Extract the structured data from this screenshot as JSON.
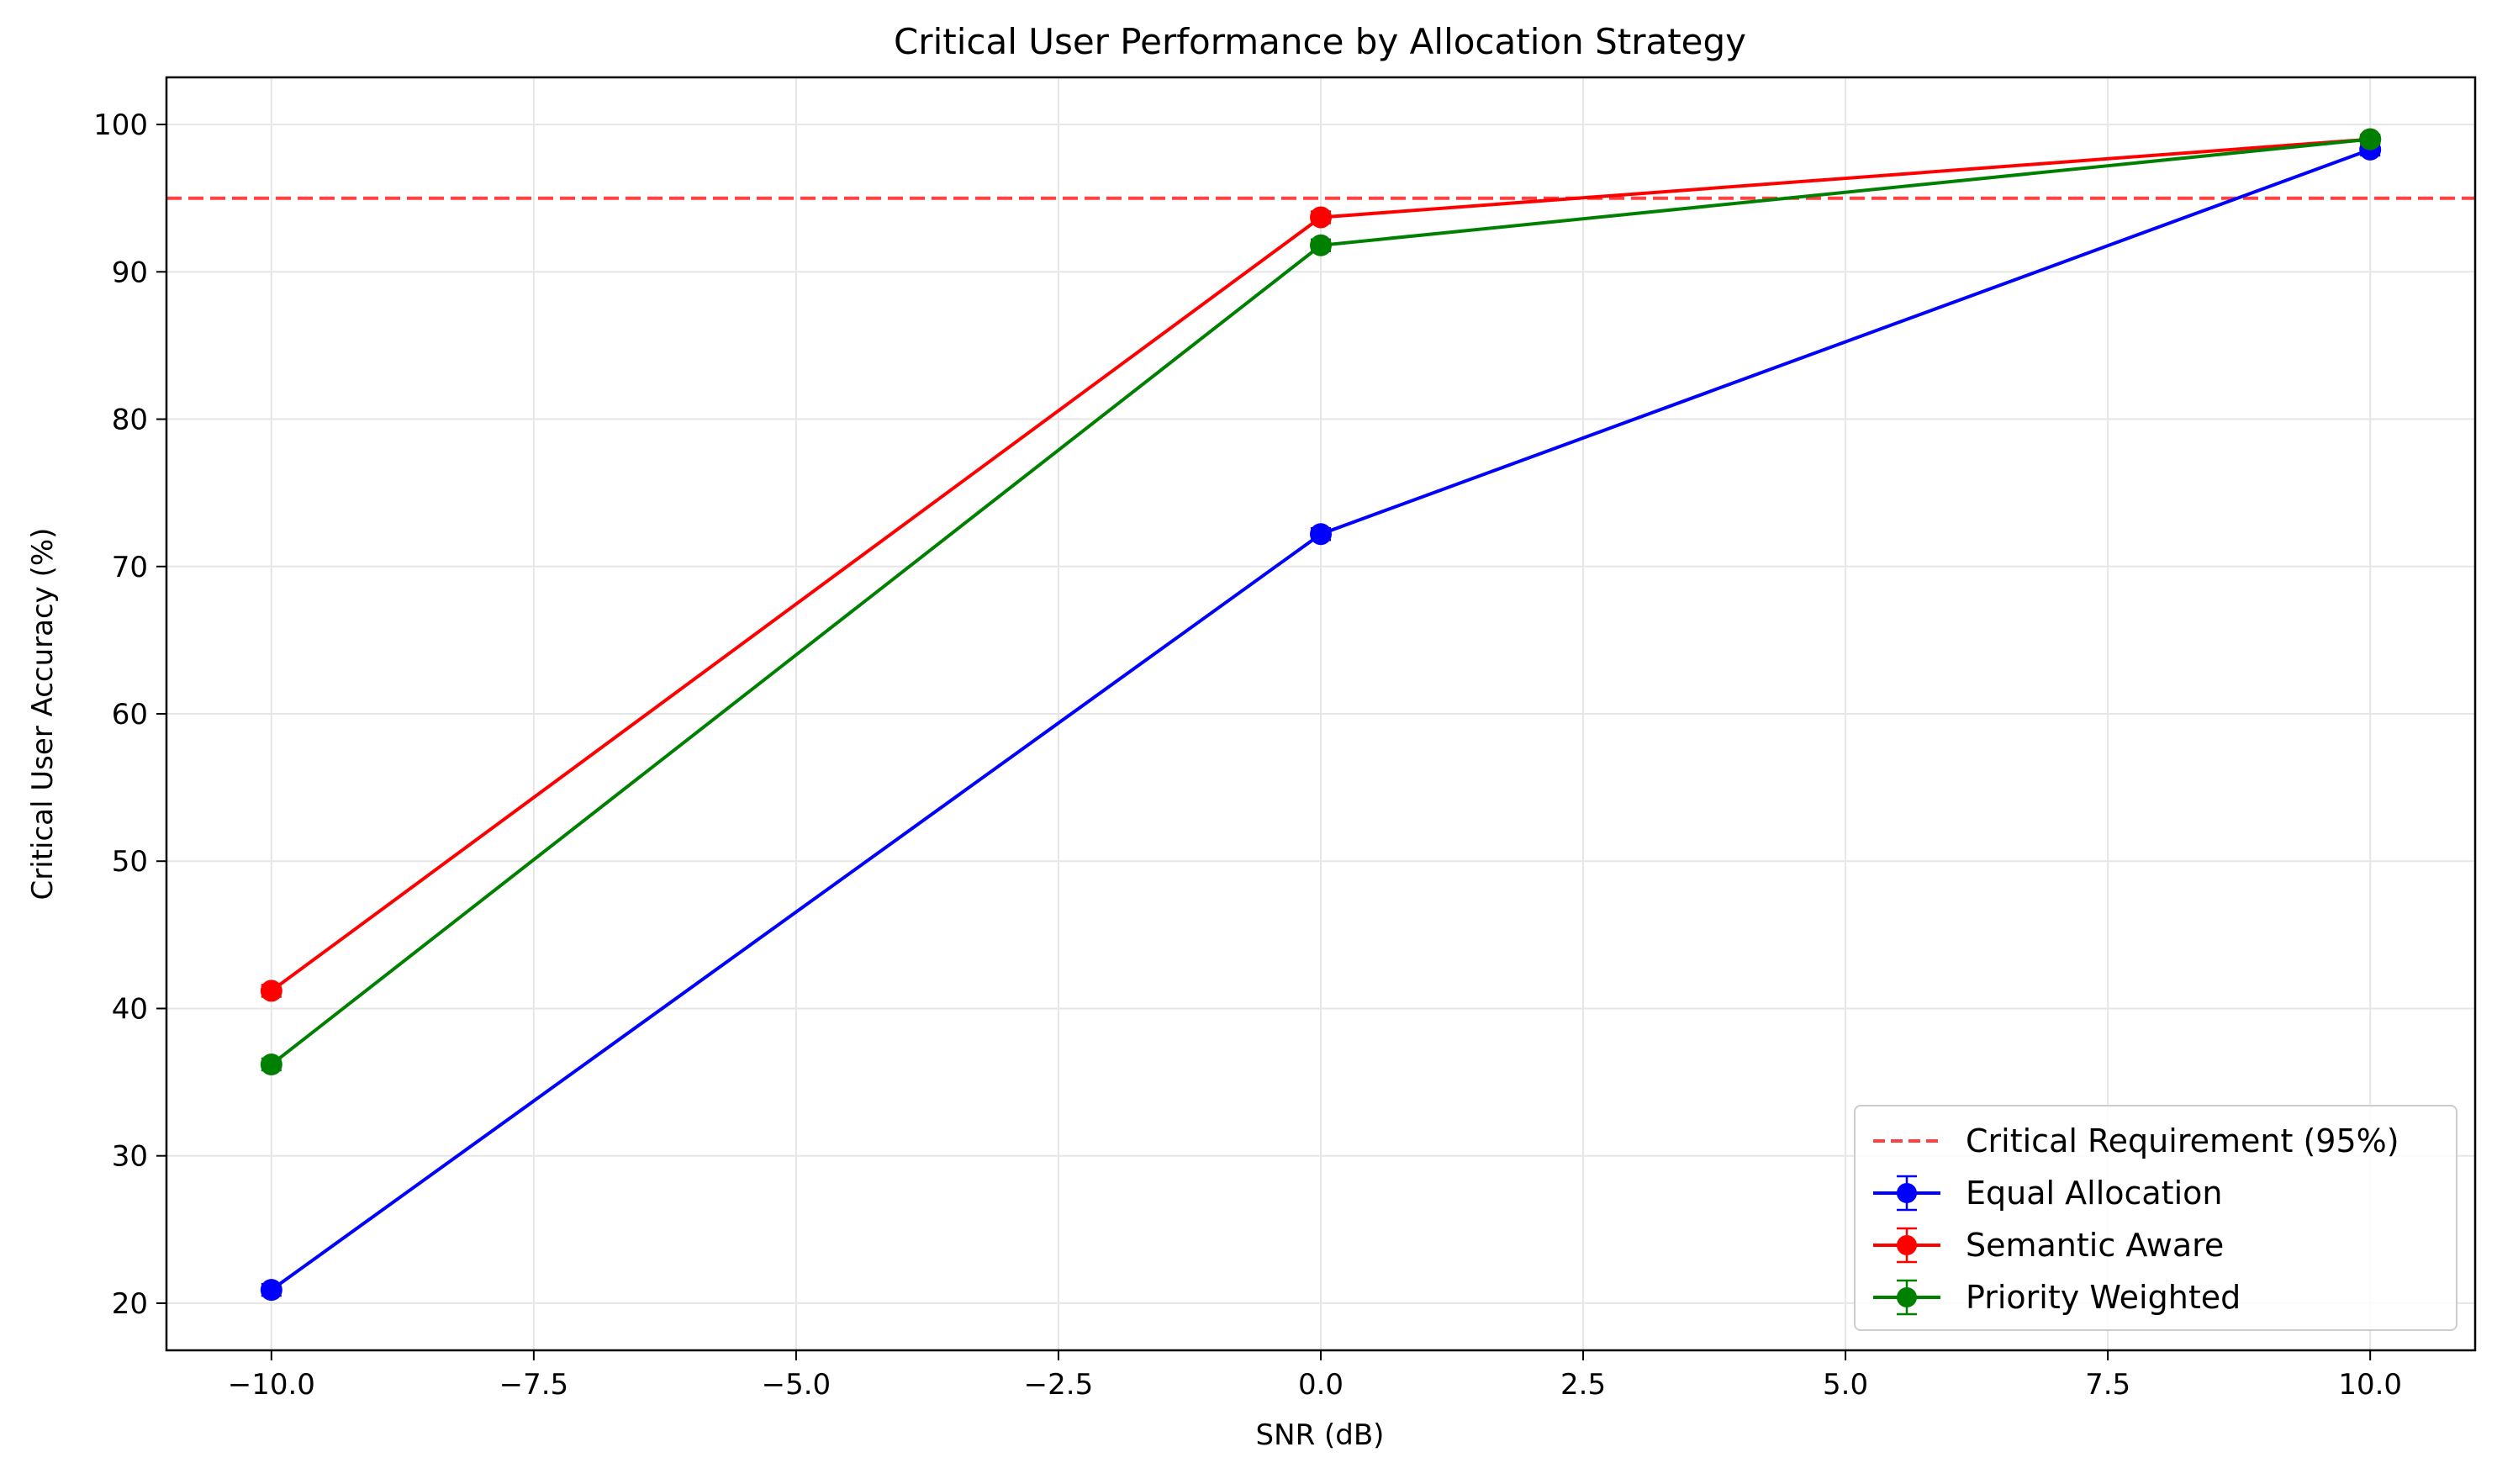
{
  "chart_data": {
    "type": "line",
    "title": "Critical User Performance by Allocation Strategy",
    "xlabel": "SNR (dB)",
    "ylabel": "Critical User Accuracy (%)",
    "xlim": [
      -11,
      11
    ],
    "ylim": [
      16.8,
      103.2
    ],
    "xticks": [
      -10,
      -7.5,
      -5,
      -2.5,
      0,
      2.5,
      5,
      7.5,
      10
    ],
    "xtick_labels": [
      "−10.0",
      "−7.5",
      "−5.0",
      "−2.5",
      "0.0",
      "2.5",
      "5.0",
      "7.5",
      "10.0"
    ],
    "yticks": [
      20,
      30,
      40,
      50,
      60,
      70,
      80,
      90,
      100
    ],
    "ytick_labels": [
      "20",
      "30",
      "40",
      "50",
      "60",
      "70",
      "80",
      "90",
      "100"
    ],
    "grid": true,
    "legend_position": "bottom-right",
    "x": [
      -10,
      0,
      10
    ],
    "series": [
      {
        "name": "Equal Allocation",
        "values": [
          20.9,
          72.2,
          98.3
        ],
        "errors": [
          0.4,
          0.4,
          0.4
        ],
        "color": "#0000ff"
      },
      {
        "name": "Semantic Aware",
        "values": [
          41.2,
          93.7,
          99.0
        ],
        "errors": [
          0.4,
          0.4,
          0.3
        ],
        "color": "#ff0000"
      },
      {
        "name": "Priority Weighted",
        "values": [
          36.2,
          91.8,
          99.0
        ],
        "errors": [
          0.4,
          0.4,
          0.3
        ],
        "color": "#008000"
      }
    ],
    "reference_line": {
      "name": "Critical Requirement (95%)",
      "y": 95,
      "color": "#ff4040",
      "style": "dashed"
    }
  }
}
